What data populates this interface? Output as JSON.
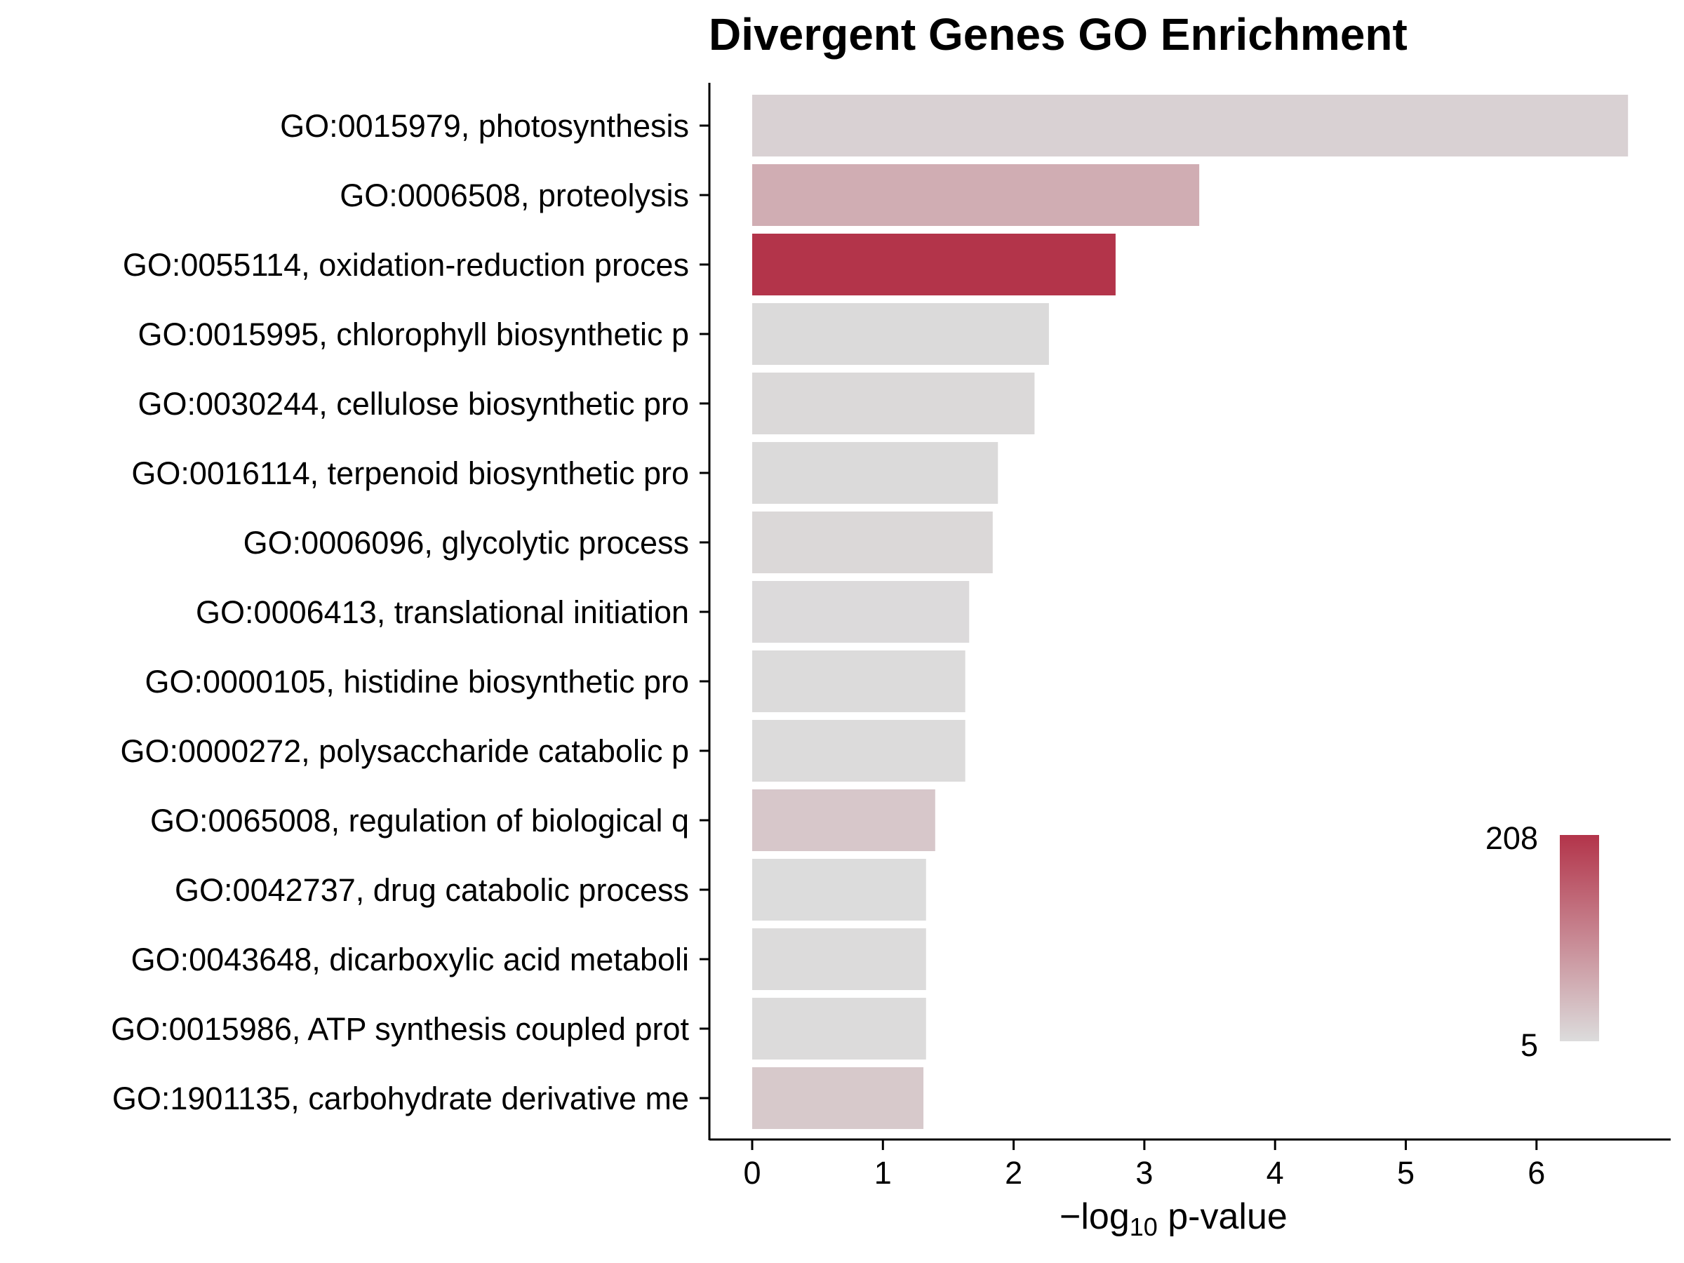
{
  "chart_data": {
    "type": "bar",
    "orientation": "horizontal",
    "title": "Divergent Genes GO Enrichment",
    "xlabel_parts": {
      "prefix": "−log",
      "subscript": "10",
      "suffix": " p-value"
    },
    "xlim": [
      0,
      7
    ],
    "xticks": [
      "0",
      "1",
      "2",
      "3",
      "4",
      "5",
      "6"
    ],
    "categories": [
      "GO:0015979, photosynthesis",
      "GO:0006508, proteolysis",
      "GO:0055114, oxidation-reduction proces",
      "GO:0015995, chlorophyll biosynthetic p",
      "GO:0030244, cellulose biosynthetic pro",
      "GO:0016114, terpenoid biosynthetic pro",
      "GO:0006096, glycolytic process",
      "GO:0006413, translational initiation",
      "GO:0000105, histidine biosynthetic pro",
      "GO:0000272, polysaccharide catabolic p",
      "GO:0065008, regulation of biological q",
      "GO:0042737, drug catabolic process",
      "GO:0043648, dicarboxylic acid metaboli",
      "GO:0015986, ATP synthesis coupled prot",
      "GO:1901135, carbohydrate derivative me"
    ],
    "values": [
      6.7,
      3.42,
      2.78,
      2.27,
      2.16,
      1.88,
      1.84,
      1.66,
      1.63,
      1.63,
      1.4,
      1.33,
      1.33,
      1.33,
      1.31
    ],
    "gene_counts": [
      18,
      62,
      208,
      8,
      9,
      8,
      10,
      7,
      6,
      6,
      30,
      5,
      6,
      6,
      28
    ],
    "colorbar": {
      "min_label": "5",
      "max_label": "208",
      "min": 5,
      "max": 208,
      "low_color": "#DCDCDC",
      "high_color": "#B3344A"
    },
    "grid": false,
    "legend_position": "bottom-right"
  }
}
